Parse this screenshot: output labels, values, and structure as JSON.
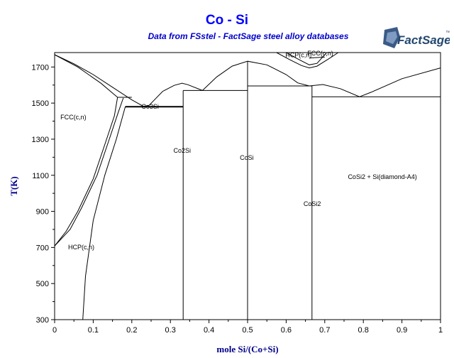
{
  "chart_data": {
    "type": "line",
    "title": "Co - Si",
    "subtitle": "Data from FSstel - FactSage steel alloy databases",
    "xlabel": "mole Si/(Co+Si)",
    "ylabel": "T(K)",
    "xlim": [
      0,
      1
    ],
    "ylim": [
      300,
      1780
    ],
    "x_ticks": [
      0,
      0.1,
      0.2,
      0.3,
      0.4,
      0.5,
      0.6,
      0.7,
      0.8,
      0.9,
      1
    ],
    "y_ticks": [
      300,
      500,
      700,
      900,
      1100,
      1300,
      1500,
      1700
    ],
    "grid": false,
    "phase_labels": [
      {
        "text": "FCC(c,n)",
        "x": 0.015,
        "y": 1410
      },
      {
        "text": "HCP(c,n)",
        "x": 0.035,
        "y": 690
      },
      {
        "text": "Co3Si",
        "x": 0.225,
        "y": 1470
      },
      {
        "text": "Co2Si",
        "x": 0.308,
        "y": 1225
      },
      {
        "text": "CoSi",
        "x": 0.48,
        "y": 1185
      },
      {
        "text": "CoSi2",
        "x": 0.645,
        "y": 930
      },
      {
        "text": "CoSi2 + Si(diamond-A4)",
        "x": 0.76,
        "y": 1080
      },
      {
        "text": "HCP(c,n)",
        "x": 0.598,
        "y": 1755
      },
      {
        "text": "FCC(c,n)",
        "x": 0.655,
        "y": 1765
      }
    ],
    "series": [
      {
        "points": [
          [
            0,
            1768
          ],
          [
            0.05,
            1718
          ],
          [
            0.1,
            1658
          ],
          [
            0.15,
            1588
          ],
          [
            0.2,
            1518
          ],
          [
            0.23,
            1482
          ],
          [
            0.245,
            1488
          ]
        ]
      },
      {
        "points": [
          [
            0,
            1768
          ],
          [
            0.06,
            1700
          ],
          [
            0.12,
            1610
          ],
          [
            0.163,
            1532
          ]
        ]
      },
      {
        "points": [
          [
            0.245,
            1488
          ],
          [
            0.28,
            1565
          ],
          [
            0.31,
            1598
          ],
          [
            0.33,
            1610
          ],
          [
            0.345,
            1602
          ],
          [
            0.383,
            1570
          ]
        ]
      },
      {
        "points": [
          [
            0.383,
            1570
          ],
          [
            0.42,
            1645
          ],
          [
            0.46,
            1705
          ],
          [
            0.5,
            1732
          ],
          [
            0.55,
            1712
          ],
          [
            0.6,
            1658
          ],
          [
            0.63,
            1612
          ],
          [
            0.66,
            1595
          ]
        ]
      },
      {
        "points": [
          [
            0.66,
            1595
          ],
          [
            0.695,
            1603
          ],
          [
            0.74,
            1580
          ],
          [
            0.79,
            1535
          ],
          [
            0.82,
            1560
          ],
          [
            0.9,
            1635
          ],
          [
            1,
            1695
          ]
        ]
      },
      {
        "points": [
          [
            0.575,
            1780
          ],
          [
            0.61,
            1740
          ],
          [
            0.64,
            1708
          ],
          [
            0.66,
            1695
          ],
          [
            0.68,
            1705
          ],
          [
            0.71,
            1745
          ],
          [
            0.735,
            1780
          ]
        ]
      },
      {
        "points": [
          [
            0.6,
            1780
          ],
          [
            0.63,
            1745
          ],
          [
            0.66,
            1712
          ],
          [
            0.68,
            1720
          ],
          [
            0.705,
            1780
          ]
        ]
      },
      {
        "points": [
          [
            0.66,
            1750
          ],
          [
            0.7,
            1755
          ]
        ]
      },
      {
        "points": [
          [
            0,
            708
          ],
          [
            0.03,
            790
          ],
          [
            0.06,
            900
          ],
          [
            0.1,
            1080
          ],
          [
            0.13,
            1270
          ],
          [
            0.155,
            1430
          ],
          [
            0.163,
            1532
          ]
        ]
      },
      {
        "points": [
          [
            0,
            708
          ],
          [
            0.04,
            800
          ],
          [
            0.07,
            920
          ],
          [
            0.11,
            1100
          ],
          [
            0.14,
            1290
          ],
          [
            0.165,
            1450
          ],
          [
            0.178,
            1528
          ]
        ]
      },
      {
        "points": [
          [
            0.073,
            300
          ],
          [
            0.08,
            540
          ],
          [
            0.1,
            850
          ],
          [
            0.13,
            1100
          ],
          [
            0.16,
            1300
          ],
          [
            0.183,
            1480
          ]
        ]
      },
      {
        "points": [
          [
            0.163,
            1532
          ],
          [
            0.2,
            1532
          ]
        ]
      },
      {
        "points": [
          [
            0.183,
            1480
          ],
          [
            0.333,
            1480
          ]
        ]
      },
      {
        "points": [
          [
            0.333,
            1570
          ],
          [
            0.5,
            1570
          ]
        ]
      },
      {
        "points": [
          [
            0.5,
            1595
          ],
          [
            0.667,
            1595
          ]
        ]
      },
      {
        "points": [
          [
            0.667,
            1535
          ],
          [
            1,
            1535
          ]
        ]
      },
      {
        "points": [
          [
            0.333,
            300
          ],
          [
            0.333,
            1570
          ]
        ]
      },
      {
        "points": [
          [
            0.5,
            300
          ],
          [
            0.5,
            1732
          ]
        ]
      },
      {
        "points": [
          [
            0.667,
            300
          ],
          [
            0.667,
            1595
          ]
        ]
      }
    ]
  },
  "logo": {
    "text": "FactSage",
    "mark": "™"
  }
}
